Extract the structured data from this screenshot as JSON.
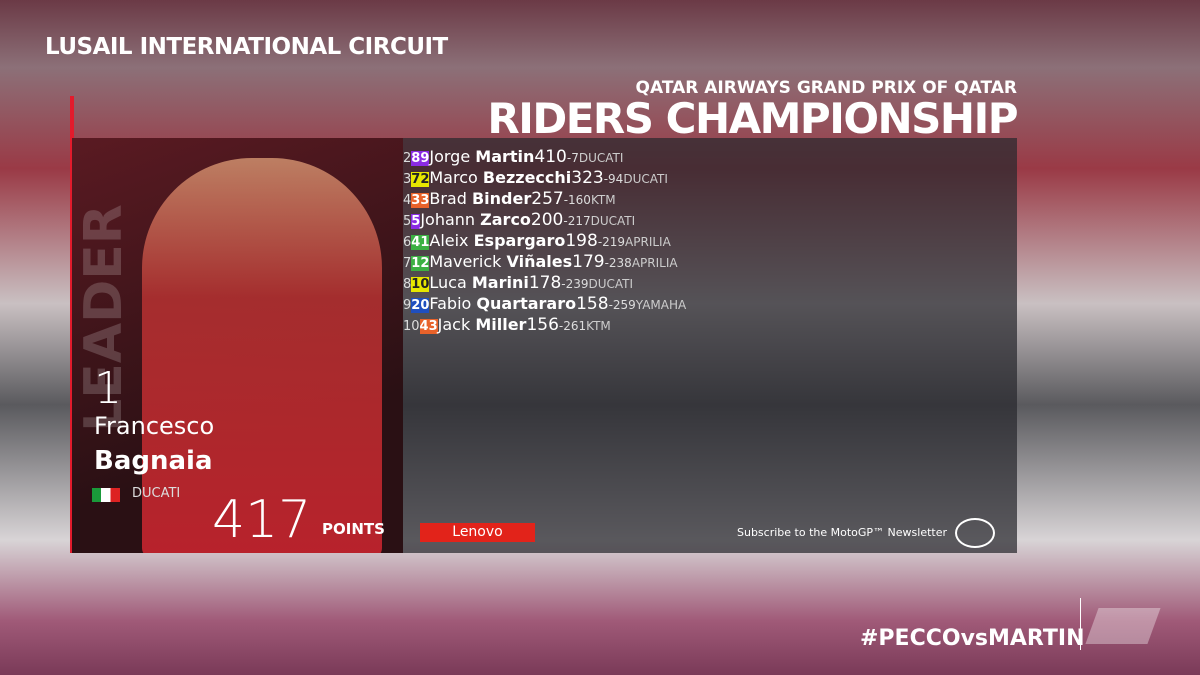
{
  "header": {
    "circuit": "LUSAIL INTERNATIONAL CIRCUIT",
    "event": "QATAR AIRWAYS GRAND PRIX OF QATAR",
    "title": "RIDERS CHAMPIONSHIP"
  },
  "leader": {
    "label": "LEADER",
    "position": 1,
    "first": "Francesco",
    "last": "Bagnaia",
    "team": "DUCATI",
    "points": 417,
    "points_label": "POINTS"
  },
  "rows": [
    {
      "pos": 2,
      "number": 89,
      "first": "Jorge",
      "last": "Martin",
      "points": 410,
      "gap": -7,
      "team": "DUCATI",
      "color": "#8a2be2"
    },
    {
      "pos": 3,
      "number": 72,
      "first": "Marco",
      "last": "Bezzecchi",
      "points": 323,
      "gap": -94,
      "team": "DUCATI",
      "color": "#e6e600"
    },
    {
      "pos": 4,
      "number": 33,
      "first": "Brad",
      "last": "Binder",
      "points": 257,
      "gap": -160,
      "team": "KTM",
      "color": "#e8622a"
    },
    {
      "pos": 5,
      "number": 5,
      "first": "Johann",
      "last": "Zarco",
      "points": 200,
      "gap": -217,
      "team": "DUCATI",
      "color": "#8a2be2"
    },
    {
      "pos": 6,
      "number": 41,
      "first": "Aleix",
      "last": "Espargaro",
      "points": 198,
      "gap": -219,
      "team": "APRILIA",
      "color": "#3cb043"
    },
    {
      "pos": 7,
      "number": 12,
      "first": "Maverick",
      "last": "Viñales",
      "points": 179,
      "gap": -238,
      "team": "APRILIA",
      "color": "#3cb043"
    },
    {
      "pos": 8,
      "number": 10,
      "first": "Luca",
      "last": "Marini",
      "points": 178,
      "gap": -239,
      "team": "DUCATI",
      "color": "#e6e600"
    },
    {
      "pos": 9,
      "number": 20,
      "first": "Fabio",
      "last": "Quartararo",
      "points": 158,
      "gap": -259,
      "team": "YAMAHA",
      "color": "#1f4fbf"
    },
    {
      "pos": 10,
      "number": 43,
      "first": "Jack",
      "last": "Miller",
      "points": 156,
      "gap": -261,
      "team": "KTM",
      "color": "#e8622a"
    }
  ],
  "footer": {
    "sponsor": "Lenovo",
    "newsletter": "Subscribe to the MotoGP™ Newsletter",
    "hashtag": "#PECCOvsMARTIN"
  }
}
